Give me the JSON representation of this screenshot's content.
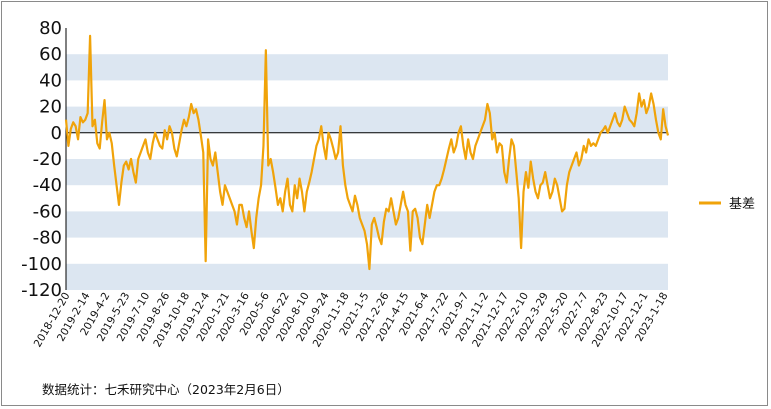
{
  "chart_data": {
    "type": "line",
    "title": "",
    "xlabel": "",
    "ylabel": "",
    "ylim": [
      -120,
      80
    ],
    "y_ticks": [
      80,
      60,
      40,
      20,
      0,
      -20,
      -40,
      -60,
      -80,
      -100,
      -120
    ],
    "x_tick_labels": [
      "2018-12-20",
      "2019-2-14",
      "2019-4-2",
      "2019-5-23",
      "2019-7-10",
      "2019-8-26",
      "2019-10-18",
      "2019-12-4",
      "2020-1-21",
      "2020-3-16",
      "2020-5-6",
      "2020-6-22",
      "2020-8-10",
      "2020-9-24",
      "2020-11-18",
      "2021-1-5",
      "2021-2-26",
      "2021-4-15",
      "2021-6-4",
      "2021-7-22",
      "2021-9-7",
      "2021-11-2",
      "2021-12-17",
      "2022-2-10",
      "2022-3-29",
      "2022-5-20",
      "2022-7-7",
      "2022-8-23",
      "2022-10-17",
      "2022-12-1",
      "2023-1-18"
    ],
    "grid": "alternating horizontal bands",
    "band_color": "#dce6f1",
    "legend_position": "right",
    "series": [
      {
        "name": "基差",
        "color": "#f0a30a",
        "values": [
          10,
          -10,
          3,
          8,
          5,
          -5,
          12,
          8,
          10,
          15,
          74,
          5,
          10,
          -8,
          -12,
          8,
          25,
          -5,
          0,
          -8,
          -25,
          -40,
          -55,
          -38,
          -25,
          -22,
          -28,
          -20,
          -30,
          -38,
          -20,
          -15,
          -10,
          -5,
          -15,
          -20,
          -8,
          0,
          -5,
          -10,
          -12,
          2,
          -5,
          5,
          0,
          -12,
          -18,
          -8,
          2,
          10,
          5,
          12,
          22,
          15,
          18,
          10,
          -2,
          -15,
          -98,
          -5,
          -20,
          -25,
          -15,
          -30,
          -45,
          -55,
          -40,
          -45,
          -50,
          -55,
          -60,
          -70,
          -55,
          -55,
          -65,
          -72,
          -60,
          -75,
          -88,
          -65,
          -50,
          -40,
          -10,
          63,
          -25,
          -20,
          -30,
          -42,
          -55,
          -50,
          -60,
          -45,
          -35,
          -55,
          -60,
          -40,
          -50,
          -35,
          -45,
          -60,
          -45,
          -38,
          -30,
          -20,
          -10,
          -5,
          5,
          -10,
          -20,
          0,
          -5,
          -12,
          -20,
          -15,
          5,
          -25,
          -40,
          -50,
          -55,
          -60,
          -48,
          -55,
          -65,
          -70,
          -75,
          -85,
          -104,
          -70,
          -65,
          -72,
          -80,
          -85,
          -68,
          -58,
          -60,
          -50,
          -60,
          -70,
          -65,
          -55,
          -45,
          -55,
          -60,
          -90,
          -60,
          -58,
          -65,
          -80,
          -85,
          -70,
          -55,
          -65,
          -55,
          -45,
          -40,
          -40,
          -35,
          -28,
          -20,
          -12,
          -5,
          -15,
          -10,
          0,
          5,
          -10,
          -20,
          -5,
          -15,
          -20,
          -10,
          -5,
          0,
          5,
          10,
          22,
          15,
          -5,
          0,
          -15,
          -8,
          -10,
          -30,
          -38,
          -20,
          -5,
          -10,
          -30,
          -50,
          -88,
          -45,
          -30,
          -42,
          -22,
          -35,
          -45,
          -50,
          -40,
          -38,
          -30,
          -40,
          -50,
          -45,
          -35,
          -40,
          -50,
          -60,
          -58,
          -40,
          -30,
          -25,
          -20,
          -15,
          -25,
          -20,
          -10,
          -15,
          -5,
          -10,
          -8,
          -10,
          -5,
          0,
          2,
          5,
          0,
          5,
          10,
          15,
          8,
          5,
          10,
          20,
          15,
          10,
          8,
          5,
          15,
          30,
          20,
          25,
          15,
          20,
          30,
          22,
          10,
          0,
          -5,
          18,
          5,
          -2
        ]
      }
    ]
  },
  "legend": {
    "label": "基差"
  },
  "footer": {
    "source": "数据统计：七禾研究中心（2023年2月6日）"
  }
}
